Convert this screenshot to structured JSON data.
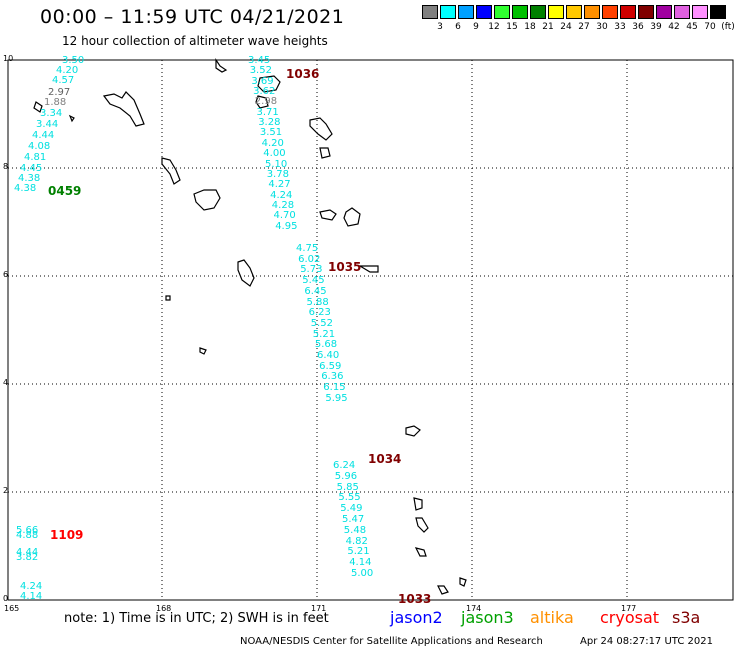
{
  "header": {
    "title": "00:00 – 11:59 UTC 04/21/2021",
    "subtitle": "12 hour collection of altimeter wave heights"
  },
  "color_scale": {
    "unit": "(ft)",
    "labels": [
      "3",
      "6",
      "9",
      "12",
      "15",
      "18",
      "21",
      "24",
      "27",
      "30",
      "33",
      "36",
      "39",
      "42",
      "45",
      "70"
    ],
    "colors": [
      "#808080",
      "#00ffff",
      "#00a0ff",
      "#0000ff",
      "#30ff30",
      "#00c000",
      "#008000",
      "#ffff00",
      "#ffc800",
      "#ff9000",
      "#ff4000",
      "#d00000",
      "#800000",
      "#a000a0",
      "#e060e0",
      "#ff90ff",
      "#000000"
    ]
  },
  "axes": {
    "x_ticks": [
      "165",
      "168",
      "171",
      "174",
      "177"
    ],
    "y_ticks": [
      "0",
      "2",
      "4",
      "6",
      "8",
      "10"
    ]
  },
  "tracks": [
    {
      "satellite": "jason3",
      "pass_time": "0459",
      "time_color": "#008000",
      "readings": [
        {
          "v": "3.50",
          "c": "#00e0e0"
        },
        {
          "v": "4.20",
          "c": "#00e0e0"
        },
        {
          "v": "4.57",
          "c": "#00e0e0"
        },
        {
          "v": "2.97",
          "c": "#606060"
        },
        {
          "v": "1.88",
          "c": "#808080"
        },
        {
          "v": "3.34",
          "c": "#00e0e0"
        },
        {
          "v": "3.44",
          "c": "#00e0e0"
        },
        {
          "v": "4.44",
          "c": "#00e0e0"
        },
        {
          "v": "4.08",
          "c": "#00e0e0"
        },
        {
          "v": "4.81",
          "c": "#00e0e0"
        },
        {
          "v": "4.45",
          "c": "#00e0e0"
        },
        {
          "v": "4.38",
          "c": "#00e0e0"
        },
        {
          "v": "4.38",
          "c": "#00e0e0"
        }
      ]
    },
    {
      "satellite": "cryosat",
      "pass_time": "1036",
      "time_color": "#800000",
      "readings": [
        {
          "v": "3.45",
          "c": "#00e0e0"
        },
        {
          "v": "3.52",
          "c": "#00e0e0"
        },
        {
          "v": "3.69",
          "c": "#00e0e0"
        },
        {
          "v": "3.62",
          "c": "#00e0e0"
        },
        {
          "v": "2.98",
          "c": "#808080"
        },
        {
          "v": "3.71",
          "c": "#00e0e0"
        },
        {
          "v": "3.28",
          "c": "#00e0e0"
        },
        {
          "v": "3.51",
          "c": "#00e0e0"
        },
        {
          "v": "4.20",
          "c": "#00e0e0"
        },
        {
          "v": "4.00",
          "c": "#00e0e0"
        },
        {
          "v": "5.10",
          "c": "#00e0e0"
        },
        {
          "v": "3.78",
          "c": "#00e0e0"
        },
        {
          "v": "4.27",
          "c": "#00e0e0"
        },
        {
          "v": "4.24",
          "c": "#00e0e0"
        },
        {
          "v": "4.28",
          "c": "#00e0e0"
        },
        {
          "v": "4.70",
          "c": "#00e0e0"
        },
        {
          "v": "4.95",
          "c": "#00e0e0"
        }
      ]
    },
    {
      "satellite": "cryosat",
      "pass_time": "1035",
      "time_color": "#800000",
      "readings": [
        {
          "v": "4.75",
          "c": "#00e0e0"
        },
        {
          "v": "6.02",
          "c": "#00e0e0"
        },
        {
          "v": "5.73",
          "c": "#00e0e0"
        },
        {
          "v": "5.45",
          "c": "#00e0e0"
        },
        {
          "v": "6.45",
          "c": "#00e0e0"
        },
        {
          "v": "5.88",
          "c": "#00e0e0"
        },
        {
          "v": "6.23",
          "c": "#00e0e0"
        },
        {
          "v": "5.52",
          "c": "#00e0e0"
        },
        {
          "v": "5.21",
          "c": "#00e0e0"
        },
        {
          "v": "5.68",
          "c": "#00e0e0"
        },
        {
          "v": "6.40",
          "c": "#00e0e0"
        },
        {
          "v": "6.59",
          "c": "#00e0e0"
        },
        {
          "v": "6.36",
          "c": "#00e0e0"
        },
        {
          "v": "6.15",
          "c": "#00e0e0"
        },
        {
          "v": "5.95",
          "c": "#00e0e0"
        }
      ]
    },
    {
      "satellite": "cryosat",
      "pass_time": "1034",
      "time_color": "#800000",
      "readings": [
        {
          "v": "6.24",
          "c": "#00e0e0"
        },
        {
          "v": "5.96",
          "c": "#00e0e0"
        },
        {
          "v": "5.85",
          "c": "#00e0e0"
        },
        {
          "v": "5.55",
          "c": "#00e0e0"
        },
        {
          "v": "5.49",
          "c": "#00e0e0"
        },
        {
          "v": "5.47",
          "c": "#00e0e0"
        },
        {
          "v": "5.48",
          "c": "#00e0e0"
        },
        {
          "v": "4.82",
          "c": "#00e0e0"
        },
        {
          "v": "5.21",
          "c": "#00e0e0"
        },
        {
          "v": "4.14",
          "c": "#00e0e0"
        },
        {
          "v": "5.00",
          "c": "#00e0e0"
        }
      ]
    },
    {
      "satellite": "cryosat",
      "pass_time": "1033",
      "time_color": "#800000",
      "readings": []
    },
    {
      "satellite": "cryosat",
      "pass_time": "1109",
      "time_color": "#ff0000",
      "readings": [
        {
          "v": "5.66",
          "c": "#00e0e0"
        },
        {
          "v": "4.88",
          "c": "#00e0e0"
        },
        {
          "v": "4.44",
          "c": "#00e0e0"
        },
        {
          "v": "3.82",
          "c": "#00e0e0"
        },
        {
          "v": "4.24",
          "c": "#00e0e0"
        },
        {
          "v": "4.14",
          "c": "#00e0e0"
        }
      ]
    }
  ],
  "note": "note: 1) Time is in UTC; 2) SWH is in feet",
  "legend": [
    {
      "name": "jason2",
      "color": "#0000ff"
    },
    {
      "name": "jason3",
      "color": "#00a000"
    },
    {
      "name": "altika",
      "color": "#ff9000"
    },
    {
      "name": "cryosat",
      "color": "#ff0000"
    },
    {
      "name": "s3a",
      "color": "#800000"
    }
  ],
  "footer": {
    "credit": "NOAA/NESDIS Center for Satellite Applications and Research",
    "timestamp": "Apr 24 08:27:17 UTC 2021"
  }
}
